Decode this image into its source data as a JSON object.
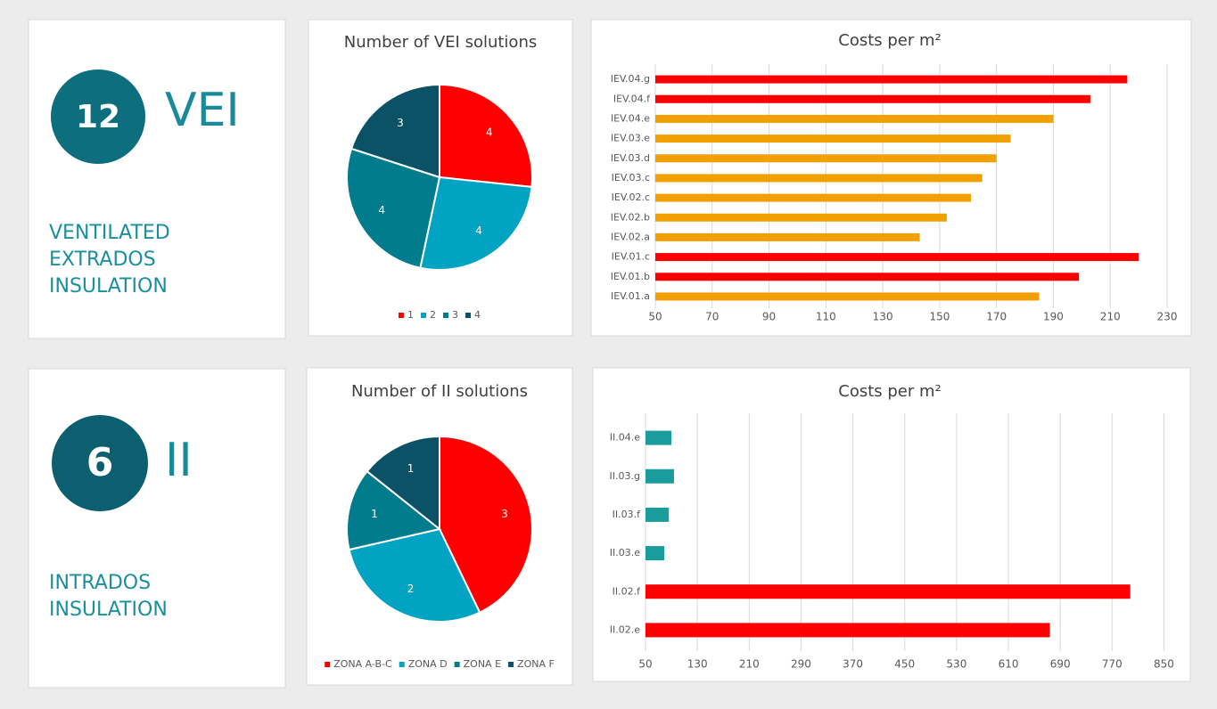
{
  "cards": [
    {
      "number": "12",
      "code": "VEI",
      "description": [
        "VENTILATED",
        "EXTRADOS",
        "INSULATION"
      ]
    },
    {
      "number": "6",
      "code": "II",
      "description": [
        "INTRADOS",
        "INSULATION"
      ]
    }
  ],
  "chart_data": [
    {
      "type": "pie",
      "title": "Number of VEI solutions",
      "categories": [
        "1",
        "2",
        "3",
        "4"
      ],
      "values": [
        4,
        4,
        4,
        3
      ],
      "colors": [
        "#ff0000",
        "#00a3c2",
        "#007c8c",
        "#0b5266"
      ],
      "legend": "bottom"
    },
    {
      "type": "hbar",
      "title": "Costs per m²",
      "categories": [
        "IEV.01.a",
        "IEV.01.b",
        "IEV.01.c",
        "IEV.02.a",
        "IEV.02.b",
        "IEV.02.c",
        "IEV.03.c",
        "IEV.03.d",
        "IEV.03.e",
        "IEV.04.e",
        "IEV.04.f",
        "IEV.04.g"
      ],
      "values": [
        185,
        199,
        220,
        143,
        152.5,
        161,
        165,
        170,
        175,
        190,
        203,
        216
      ],
      "colors": [
        "#f2a000",
        "#ff0000",
        "#ff0000",
        "#f2a000",
        "#f2a000",
        "#f2a000",
        "#f2a000",
        "#f2a000",
        "#f2a000",
        "#f2a000",
        "#ff0000",
        "#ff0000"
      ],
      "xlim": [
        50,
        235
      ],
      "xticks": [
        50,
        70,
        90,
        110,
        130,
        150,
        170,
        190,
        210,
        230
      ],
      "grid": true
    },
    {
      "type": "pie",
      "title": "Number of II solutions",
      "categories": [
        "ZONA A-B-C",
        "ZONA D",
        "ZONA E",
        "ZONA F"
      ],
      "values": [
        3,
        2,
        1,
        1
      ],
      "colors": [
        "#ff0000",
        "#00a3c2",
        "#007c8c",
        "#0b5266"
      ],
      "legend": "bottom"
    },
    {
      "type": "hbar",
      "title": "Costs per m²",
      "categories": [
        "II.02.e",
        "II.02.f",
        "II.03.e",
        "II.03.f",
        "II.03.g",
        "II.04.e"
      ],
      "values": [
        674,
        798,
        79,
        86,
        94,
        90
      ],
      "colors": [
        "#ff0000",
        "#ff0000",
        "#1a9c9c",
        "#1a9c9c",
        "#1a9c9c",
        "#1a9c9c"
      ],
      "xlim": [
        50,
        870
      ],
      "xticks": [
        50,
        130,
        210,
        290,
        370,
        450,
        530,
        610,
        690,
        770,
        850
      ],
      "grid": true
    }
  ]
}
